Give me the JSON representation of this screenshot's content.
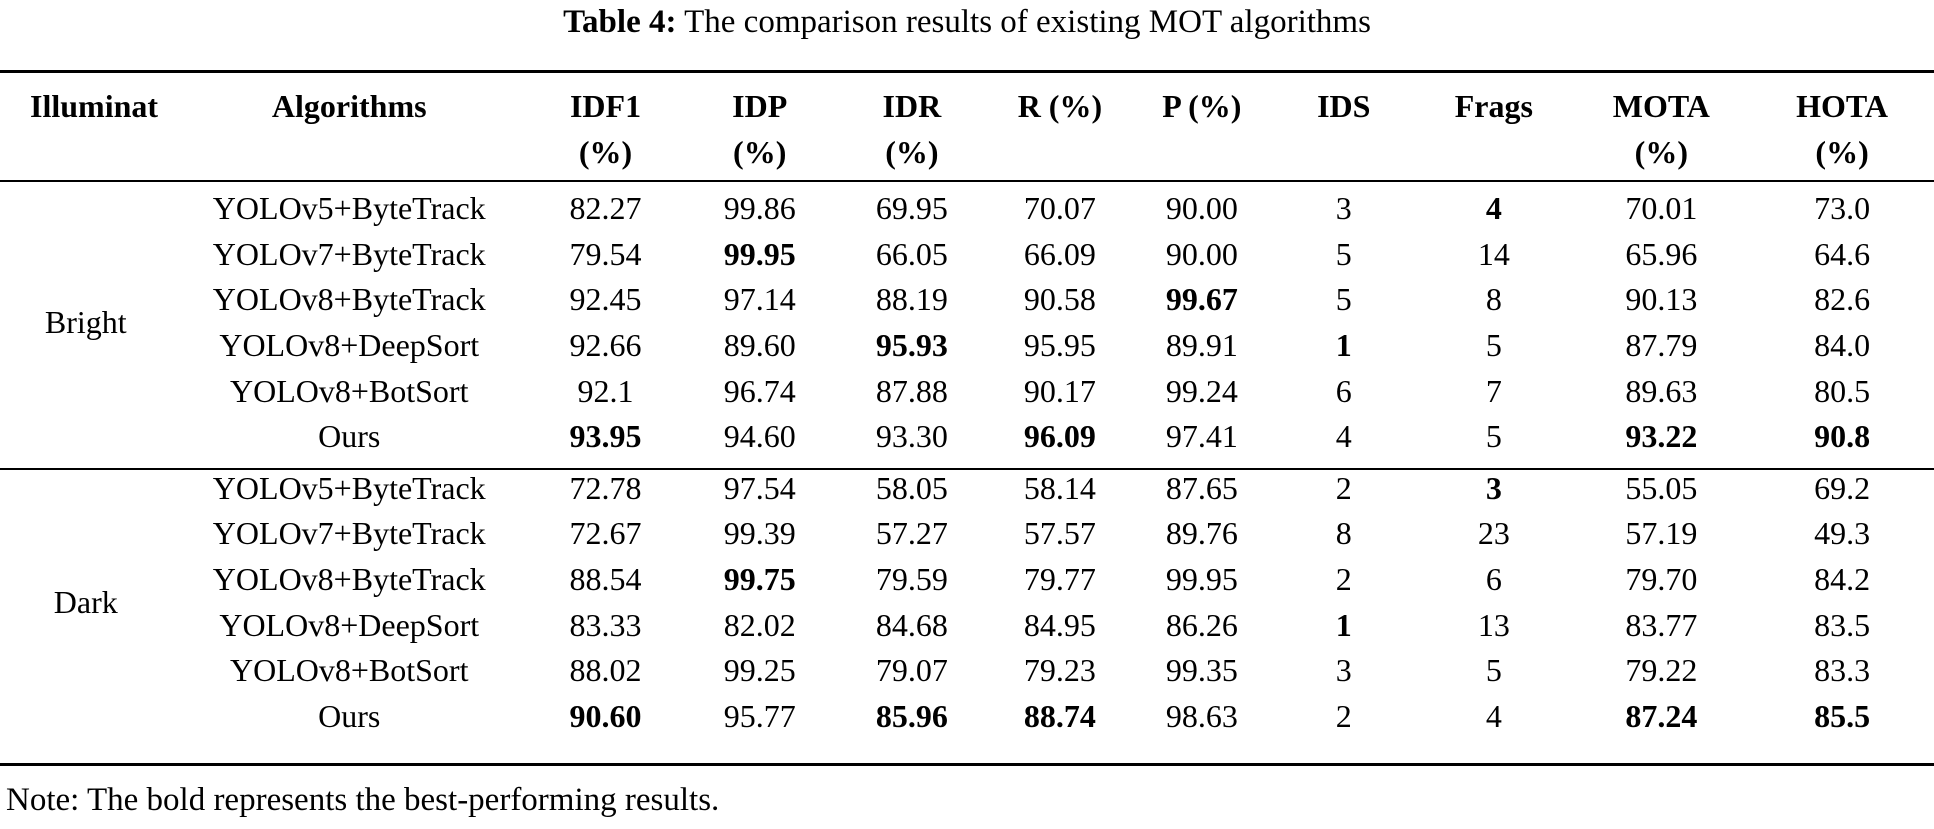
{
  "caption": {
    "label": "Table 4:",
    "text": "The comparison results of existing MOT algorithms"
  },
  "headers": {
    "illumination": "Illuminat",
    "algorithms": "Algorithms",
    "idf1_a": "IDF1",
    "idf1_b": "(%)",
    "idp_a": "IDP",
    "idp_b": "(%)",
    "idr_a": "IDR",
    "idr_b": "(%)",
    "r": "R (%)",
    "p": "P (%)",
    "ids": "IDS",
    "frags": "Frags",
    "mota_a": "MOTA",
    "mota_b": "(%)",
    "hota_a": "HOTA",
    "hota_b": "(%)"
  },
  "groups": [
    {
      "name": "Bright",
      "rows": [
        {
          "algorithm": "YOLOv5+ByteTrack",
          "idf1": "82.27",
          "idp": "99.86",
          "idr": "69.95",
          "r": "70.07",
          "p": "90.00",
          "ids": "3",
          "frags": "4",
          "mota": "70.01",
          "hota": "73.0"
        },
        {
          "algorithm": "YOLOv7+ByteTrack",
          "idf1": "79.54",
          "idp": "99.95",
          "idr": "66.05",
          "r": "66.09",
          "p": "90.00",
          "ids": "5",
          "frags": "14",
          "mota": "65.96",
          "hota": "64.6"
        },
        {
          "algorithm": "YOLOv8+ByteTrack",
          "idf1": "92.45",
          "idp": "97.14",
          "idr": "88.19",
          "r": "90.58",
          "p": "99.67",
          "ids": "5",
          "frags": "8",
          "mota": "90.13",
          "hota": "82.6"
        },
        {
          "algorithm": "YOLOv8+DeepSort",
          "idf1": "92.66",
          "idp": "89.60",
          "idr": "95.93",
          "r": "95.95",
          "p": "89.91",
          "ids": "1",
          "frags": "5",
          "mota": "87.79",
          "hota": "84.0"
        },
        {
          "algorithm": "YOLOv8+BotSort",
          "idf1": "92.1",
          "idp": "96.74",
          "idr": "87.88",
          "r": "90.17",
          "p": "99.24",
          "ids": "6",
          "frags": "7",
          "mota": "89.63",
          "hota": "80.5"
        },
        {
          "algorithm": "Ours",
          "idf1": "93.95",
          "idp": "94.60",
          "idr": "93.30",
          "r": "96.09",
          "p": "97.41",
          "ids": "4",
          "frags": "5",
          "mota": "93.22",
          "hota": "90.8"
        }
      ]
    },
    {
      "name": "Dark",
      "rows": [
        {
          "algorithm": "YOLOv5+ByteTrack",
          "idf1": "72.78",
          "idp": "97.54",
          "idr": "58.05",
          "r": "58.14",
          "p": "87.65",
          "ids": "2",
          "frags": "3",
          "mota": "55.05",
          "hota": "69.2"
        },
        {
          "algorithm": "YOLOv7+ByteTrack",
          "idf1": "72.67",
          "idp": "99.39",
          "idr": "57.27",
          "r": "57.57",
          "p": "89.76",
          "ids": "8",
          "frags": "23",
          "mota": "57.19",
          "hota": "49.3"
        },
        {
          "algorithm": "YOLOv8+ByteTrack",
          "idf1": "88.54",
          "idp": "99.75",
          "idr": "79.59",
          "r": "79.77",
          "p": "99.95",
          "ids": "2",
          "frags": "6",
          "mota": "79.70",
          "hota": "84.2"
        },
        {
          "algorithm": "YOLOv8+DeepSort",
          "idf1": "83.33",
          "idp": "82.02",
          "idr": "84.68",
          "r": "84.95",
          "p": "86.26",
          "ids": "1",
          "frags": "13",
          "mota": "83.77",
          "hota": "83.5"
        },
        {
          "algorithm": "YOLOv8+BotSort",
          "idf1": "88.02",
          "idp": "99.25",
          "idr": "79.07",
          "r": "79.23",
          "p": "99.35",
          "ids": "3",
          "frags": "5",
          "mota": "79.22",
          "hota": "83.3"
        },
        {
          "algorithm": "Ours",
          "idf1": "90.60",
          "idp": "95.77",
          "idr": "85.96",
          "r": "88.74",
          "p": "98.63",
          "ids": "2",
          "frags": "4",
          "mota": "87.24",
          "hota": "85.5"
        }
      ]
    }
  ],
  "note": "Note: The bold represents the best-performing results."
}
